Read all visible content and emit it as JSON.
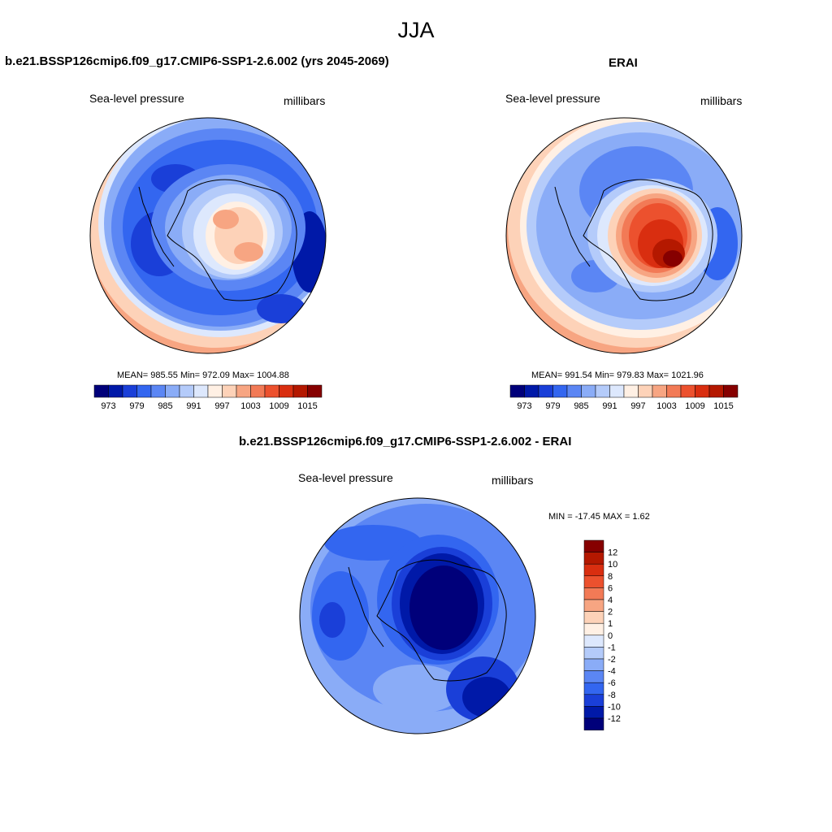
{
  "figure": {
    "season": "JJA"
  },
  "panels": {
    "model": {
      "title": "b.e21.BSSP126cmip6.f09_g17.CMIP6-SSP1-2.6.002 (yrs 2045-2069)",
      "variable": "Sea-level pressure",
      "units": "millibars",
      "stats": "MEAN= 985.55  Min= 972.09  Max= 1004.88",
      "mean": 985.55,
      "min": 972.09,
      "max": 1004.88
    },
    "obs": {
      "title": "ERAI",
      "variable": "Sea-level pressure",
      "units": "millibars",
      "stats": "MEAN= 991.54  Min= 979.83  Max= 1021.96",
      "mean": 991.54,
      "min": 979.83,
      "max": 1021.96
    },
    "diff": {
      "title": "b.e21.BSSP126cmip6.f09_g17.CMIP6-SSP1-2.6.002 - ERAI",
      "variable": "Sea-level pressure",
      "units": "millibars",
      "stats": "MIN = -17.45 MAX =   1.62",
      "min": -17.45,
      "max": 1.62
    }
  },
  "colorbars": {
    "abs": {
      "colors": [
        "#00007a",
        "#0019a8",
        "#1a3fd8",
        "#3366f0",
        "#5b86f4",
        "#8aacf7",
        "#b4cbfa",
        "#dde8fd",
        "#fff0e4",
        "#fdd2b8",
        "#f7a582",
        "#f27a56",
        "#ec512e",
        "#d92e10",
        "#b41800",
        "#860000"
      ],
      "tick_labels": [
        "973",
        "979",
        "985",
        "991",
        "997",
        "1003",
        "1009",
        "1015"
      ]
    },
    "diff": {
      "colors": [
        "#00007a",
        "#0019a8",
        "#1a3fd8",
        "#3366f0",
        "#5b86f4",
        "#8aacf7",
        "#b4cbfa",
        "#dde8fd",
        "#fff0e4",
        "#fdd2b8",
        "#f7a582",
        "#f27a56",
        "#ec512e",
        "#d92e10",
        "#b41800",
        "#860000"
      ],
      "tick_labels": [
        "12",
        "10",
        "8",
        "6",
        "4",
        "2",
        "1",
        "0",
        "-1",
        "-2",
        "-4",
        "-6",
        "-8",
        "-10",
        "-12"
      ]
    }
  },
  "colors": {
    "coastline": "#000000",
    "map_border": "#000000"
  }
}
